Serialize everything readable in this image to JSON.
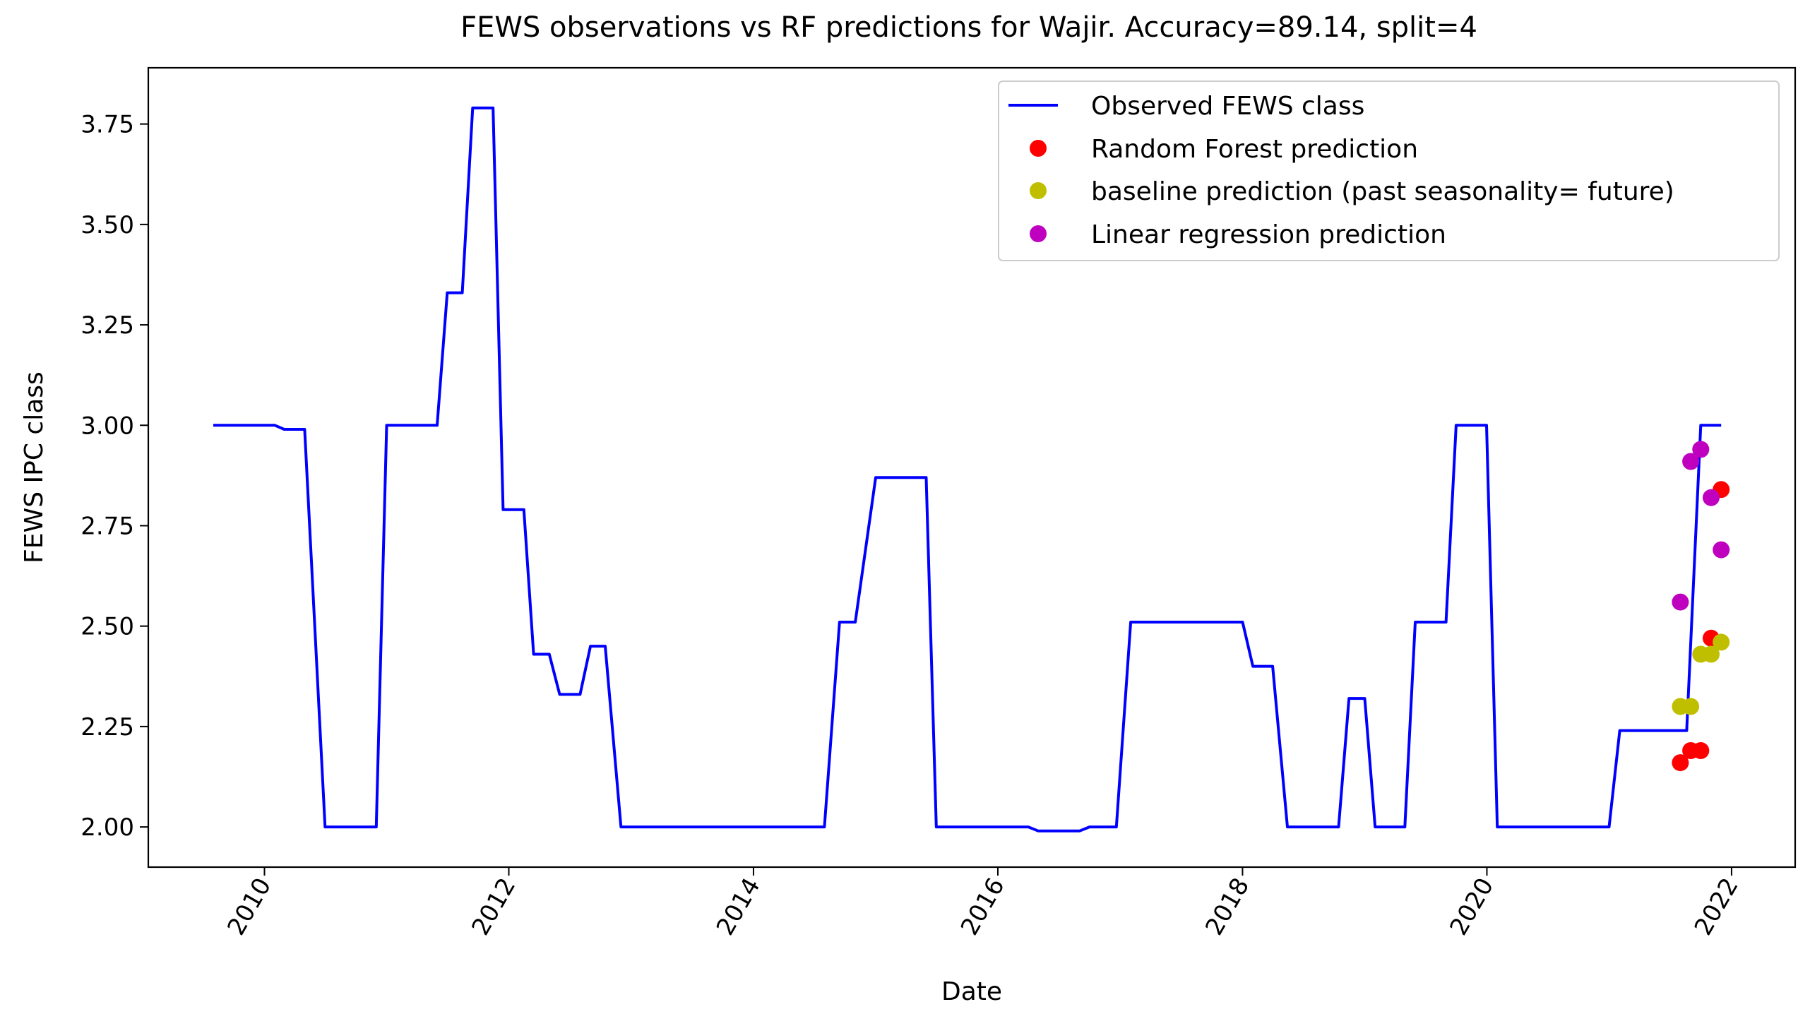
{
  "chart_data": {
    "type": "line",
    "title": "FEWS observations vs RF predictions for Wajir. Accuracy=89.14, split=4",
    "xlabel": "Date",
    "ylabel": "FEWS IPC class",
    "xlim": [
      "2009-01-19",
      "2022-07-10"
    ],
    "ylim": [
      1.9,
      3.89
    ],
    "x_ticks": [
      "2010",
      "2012",
      "2014",
      "2016",
      "2018",
      "2020",
      "2022"
    ],
    "y_ticks": [
      "2.00",
      "2.25",
      "2.50",
      "2.75",
      "3.00",
      "3.25",
      "3.50",
      "3.75"
    ],
    "grid": false,
    "legend_position": "top-right",
    "legend": {
      "observed": "Observed FEWS class",
      "rf": "Random Forest prediction",
      "baseline": "baseline prediction (past seasonality= future)",
      "linreg": "Linear regression prediction"
    },
    "colors": {
      "observed": "#0000ff",
      "rf": "#ff0000",
      "baseline": "#bfbf00",
      "linreg": "#bf00bf"
    },
    "series": [
      {
        "name": "Observed FEWS class",
        "style": "line",
        "points": [
          [
            "2009-08-01",
            3.0
          ],
          [
            "2010-02-01",
            3.0
          ],
          [
            "2010-03-01",
            2.99
          ],
          [
            "2010-05-01",
            2.99
          ],
          [
            "2010-07-01",
            2.0
          ],
          [
            "2010-12-01",
            2.0
          ],
          [
            "2011-01-01",
            3.0
          ],
          [
            "2011-06-01",
            3.0
          ],
          [
            "2011-07-01",
            3.33
          ],
          [
            "2011-08-15",
            3.33
          ],
          [
            "2011-09-15",
            3.79
          ],
          [
            "2011-11-15",
            3.79
          ],
          [
            "2011-12-15",
            2.79
          ],
          [
            "2012-02-15",
            2.79
          ],
          [
            "2012-03-15",
            2.43
          ],
          [
            "2012-05-01",
            2.43
          ],
          [
            "2012-06-01",
            2.33
          ],
          [
            "2012-08-01",
            2.33
          ],
          [
            "2012-09-01",
            2.45
          ],
          [
            "2012-10-15",
            2.45
          ],
          [
            "2012-12-01",
            2.0
          ],
          [
            "2013-05-01",
            2.0
          ],
          [
            "2013-06-01",
            2.0
          ],
          [
            "2014-08-01",
            2.0
          ],
          [
            "2014-09-15",
            2.51
          ],
          [
            "2014-11-01",
            2.51
          ],
          [
            "2015-01-01",
            2.87
          ],
          [
            "2015-06-01",
            2.87
          ],
          [
            "2015-07-01",
            2.0
          ],
          [
            "2016-04-01",
            2.0
          ],
          [
            "2016-05-01",
            1.99
          ],
          [
            "2016-09-01",
            1.99
          ],
          [
            "2016-10-01",
            2.0
          ],
          [
            "2016-12-20",
            2.0
          ],
          [
            "2017-02-01",
            2.51
          ],
          [
            "2017-09-01",
            2.51
          ],
          [
            "2017-10-01",
            2.51
          ],
          [
            "2018-01-01",
            2.51
          ],
          [
            "2018-02-01",
            2.4
          ],
          [
            "2018-04-01",
            2.4
          ],
          [
            "2018-05-15",
            2.0
          ],
          [
            "2018-10-15",
            2.0
          ],
          [
            "2018-11-15",
            2.32
          ],
          [
            "2019-01-01",
            2.32
          ],
          [
            "2019-02-01",
            2.0
          ],
          [
            "2019-05-01",
            2.0
          ],
          [
            "2019-06-01",
            2.51
          ],
          [
            "2019-09-01",
            2.51
          ],
          [
            "2019-10-01",
            3.0
          ],
          [
            "2019-12-31",
            3.0
          ],
          [
            "2020-02-01",
            2.0
          ],
          [
            "2020-12-31",
            2.0
          ],
          [
            "2021-02-01",
            2.24
          ],
          [
            "2021-08-20",
            2.24
          ],
          [
            "2021-10-01",
            3.0
          ],
          [
            "2021-12-01",
            3.0
          ]
        ]
      },
      {
        "name": "Random Forest prediction",
        "style": "marker",
        "points": [
          [
            "2021-08-01",
            2.16
          ],
          [
            "2021-09-01",
            2.19
          ],
          [
            "2021-10-01",
            2.19
          ],
          [
            "2021-11-01",
            2.47
          ],
          [
            "2021-12-01",
            2.84
          ]
        ]
      },
      {
        "name": "baseline prediction (past seasonality= future)",
        "style": "marker",
        "points": [
          [
            "2021-08-01",
            2.3
          ],
          [
            "2021-09-01",
            2.3
          ],
          [
            "2021-10-01",
            2.43
          ],
          [
            "2021-11-01",
            2.43
          ],
          [
            "2021-12-01",
            2.46
          ]
        ]
      },
      {
        "name": "Linear regression prediction",
        "style": "marker",
        "points": [
          [
            "2021-08-01",
            2.56
          ],
          [
            "2021-09-01",
            2.91
          ],
          [
            "2021-10-01",
            2.94
          ],
          [
            "2021-11-01",
            2.82
          ],
          [
            "2021-12-01",
            2.69
          ]
        ]
      }
    ]
  }
}
